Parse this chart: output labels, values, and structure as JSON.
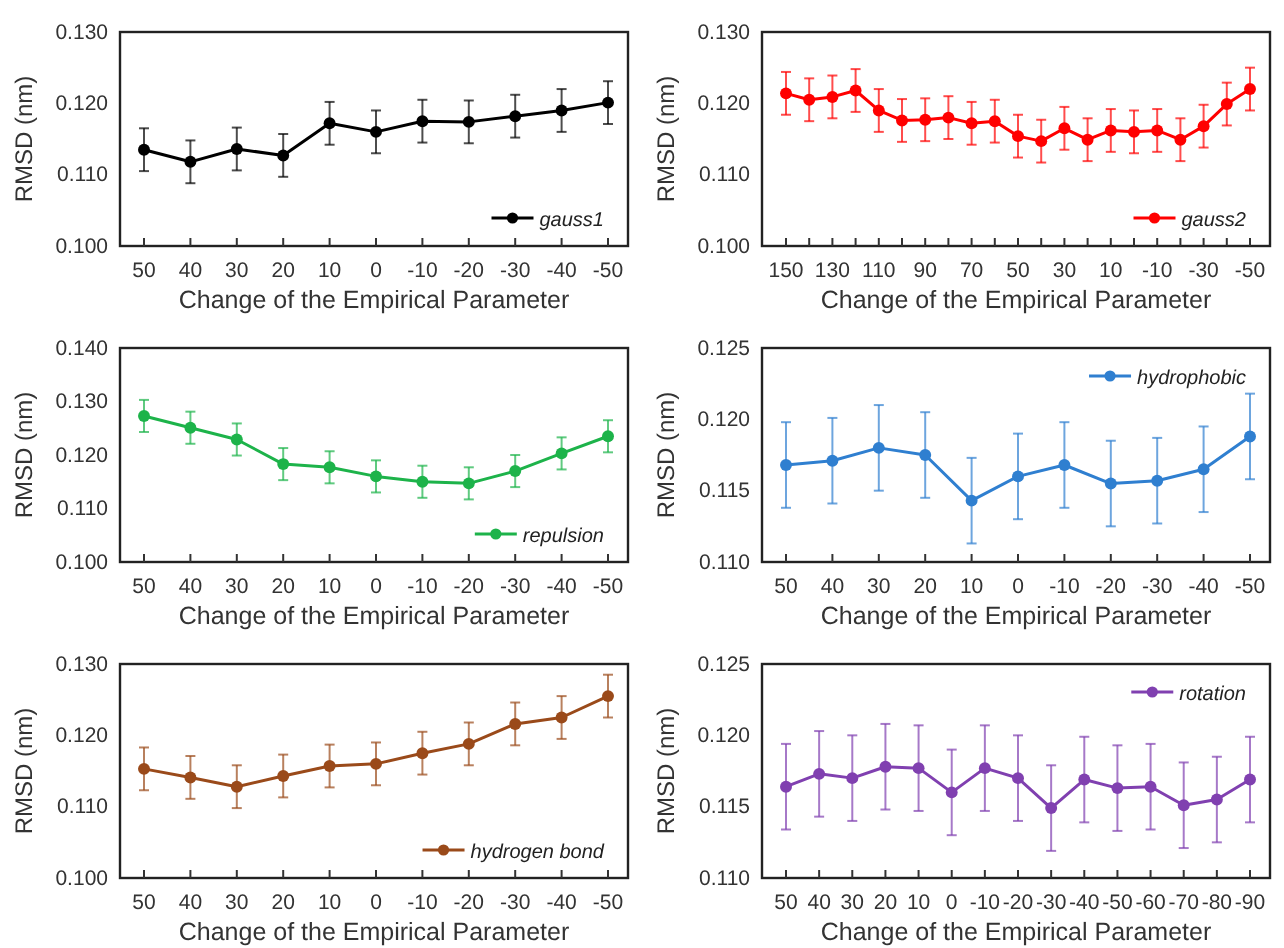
{
  "chart_data": [
    {
      "type": "line",
      "xlabel": "Change of the Empirical Parameter",
      "ylabel": "RMSD (nm)",
      "categories": [
        "50",
        "40",
        "30",
        "20",
        "10",
        "0",
        "-10",
        "-20",
        "-30",
        "-40",
        "-50"
      ],
      "ylim": [
        0.1,
        0.13
      ],
      "yticks": [
        {
          "value": 0.1,
          "label": "0.100"
        },
        {
          "value": 0.11,
          "label": "0.110"
        },
        {
          "value": 0.12,
          "label": "0.120"
        },
        {
          "value": 0.13,
          "label": "0.130"
        }
      ],
      "legend": "bottom right",
      "marker": "circle",
      "grid": false,
      "series": [
        {
          "name": "gauss1",
          "color": "#000000",
          "values": [
            0.1135,
            0.1118,
            0.1136,
            0.1127,
            0.1172,
            0.116,
            0.1175,
            0.1174,
            0.1182,
            0.119,
            0.1201
          ],
          "errors": [
            0.003,
            0.003,
            0.003,
            0.003,
            0.003,
            0.003,
            0.003,
            0.003,
            0.003,
            0.003,
            0.003
          ]
        }
      ]
    },
    {
      "type": "line",
      "xlabel": "Change of the Empirical Parameter",
      "ylabel": "RMSD (nm)",
      "categories": [
        "150",
        null,
        "130",
        null,
        "110",
        null,
        "90",
        null,
        "70",
        null,
        "50",
        null,
        "30",
        null,
        "10",
        null,
        "-10",
        null,
        "-30",
        null,
        "-50"
      ],
      "ylim": [
        0.1,
        0.13
      ],
      "yticks": [
        {
          "value": 0.1,
          "label": "0.100"
        },
        {
          "value": 0.11,
          "label": "0.110"
        },
        {
          "value": 0.12,
          "label": "0.120"
        },
        {
          "value": 0.13,
          "label": "0.130"
        }
      ],
      "legend": "bottom right",
      "marker": "circle",
      "grid": false,
      "series": [
        {
          "name": "gauss2",
          "color": "#ff0000",
          "values": [
            0.1214,
            0.1205,
            0.1209,
            0.1218,
            0.119,
            0.1176,
            0.1177,
            0.118,
            0.1172,
            0.1175,
            0.1154,
            0.1147,
            0.1165,
            0.1149,
            0.1162,
            0.116,
            0.1162,
            0.1149,
            0.1168,
            0.1199,
            0.122
          ],
          "errors": [
            0.003,
            0.003,
            0.003,
            0.003,
            0.003,
            0.003,
            0.003,
            0.003,
            0.003,
            0.003,
            0.003,
            0.003,
            0.003,
            0.003,
            0.003,
            0.003,
            0.003,
            0.003,
            0.003,
            0.003,
            0.003
          ]
        }
      ]
    },
    {
      "type": "line",
      "xlabel": "Change of the Empirical Parameter",
      "ylabel": "RMSD (nm)",
      "categories": [
        "50",
        "40",
        "30",
        "20",
        "10",
        "0",
        "-10",
        "-20",
        "-30",
        "-40",
        "-50"
      ],
      "ylim": [
        0.1,
        0.14
      ],
      "yticks": [
        {
          "value": 0.1,
          "label": "0.100"
        },
        {
          "value": 0.11,
          "label": "0.110"
        },
        {
          "value": 0.12,
          "label": "0.120"
        },
        {
          "value": 0.13,
          "label": "0.130"
        },
        {
          "value": 0.14,
          "label": "0.140"
        }
      ],
      "legend": "bottom right",
      "marker": "circle",
      "grid": false,
      "series": [
        {
          "name": "repulsion",
          "color": "#1db34a",
          "values": [
            0.1273,
            0.1251,
            0.1229,
            0.1183,
            0.1177,
            0.116,
            0.115,
            0.1147,
            0.117,
            0.1203,
            0.1235
          ],
          "errors": [
            0.003,
            0.003,
            0.003,
            0.003,
            0.003,
            0.003,
            0.003,
            0.003,
            0.003,
            0.003,
            0.003
          ]
        }
      ]
    },
    {
      "type": "line",
      "xlabel": "Change of the Empirical Parameter",
      "ylabel": "RMSD (nm)",
      "categories": [
        "50",
        "40",
        "30",
        "20",
        "10",
        "0",
        "-10",
        "-20",
        "-30",
        "-40",
        "-50"
      ],
      "ylim": [
        0.11,
        0.125
      ],
      "yticks": [
        {
          "value": 0.11,
          "label": "0.110"
        },
        {
          "value": 0.115,
          "label": "0.115"
        },
        {
          "value": 0.12,
          "label": "0.120"
        },
        {
          "value": 0.125,
          "label": "0.125"
        }
      ],
      "legend": "top right",
      "marker": "circle",
      "grid": false,
      "series": [
        {
          "name": "hydrophobic",
          "color": "#2f7fd0",
          "values": [
            0.1168,
            0.1171,
            0.118,
            0.1175,
            0.1143,
            0.116,
            0.1168,
            0.1155,
            0.1157,
            0.1165,
            0.1188
          ],
          "errors": [
            0.003,
            0.003,
            0.003,
            0.003,
            0.003,
            0.003,
            0.003,
            0.003,
            0.003,
            0.003,
            0.003
          ]
        }
      ]
    },
    {
      "type": "line",
      "xlabel": "Change of the Empirical Parameter",
      "ylabel": "RMSD (nm)",
      "categories": [
        "50",
        "40",
        "30",
        "20",
        "10",
        "0",
        "-10",
        "-20",
        "-30",
        "-40",
        "-50"
      ],
      "ylim": [
        0.1,
        0.13
      ],
      "yticks": [
        {
          "value": 0.1,
          "label": "0.100"
        },
        {
          "value": 0.11,
          "label": "0.110"
        },
        {
          "value": 0.12,
          "label": "0.120"
        },
        {
          "value": 0.13,
          "label": "0.130"
        }
      ],
      "legend": "bottom right",
      "marker": "circle",
      "grid": false,
      "series": [
        {
          "name": "hydrogen bond",
          "color": "#9a4a1a",
          "values": [
            0.1153,
            0.1141,
            0.1128,
            0.1143,
            0.1157,
            0.116,
            0.1175,
            0.1188,
            0.1216,
            0.1225,
            0.1255
          ],
          "errors": [
            0.003,
            0.003,
            0.003,
            0.003,
            0.003,
            0.003,
            0.003,
            0.003,
            0.003,
            0.003,
            0.003
          ]
        }
      ]
    },
    {
      "type": "line",
      "xlabel": "Change of the Empirical Parameter",
      "ylabel": "RMSD (nm)",
      "categories": [
        "50",
        "40",
        "30",
        "20",
        "10",
        "0",
        "-10",
        "-20",
        "-30",
        "-40",
        "-50",
        "-60",
        "-70",
        "-80",
        "-90"
      ],
      "ylim": [
        0.11,
        0.125
      ],
      "yticks": [
        {
          "value": 0.11,
          "label": "0.110"
        },
        {
          "value": 0.115,
          "label": "0.115"
        },
        {
          "value": 0.12,
          "label": "0.120"
        },
        {
          "value": 0.125,
          "label": "0.125"
        }
      ],
      "legend": "top right",
      "marker": "circle",
      "grid": false,
      "series": [
        {
          "name": "rotation",
          "color": "#8040b0",
          "values": [
            0.1164,
            0.1173,
            0.117,
            0.1178,
            0.1177,
            0.116,
            0.1177,
            0.117,
            0.1149,
            0.1169,
            0.1163,
            0.1164,
            0.1151,
            0.1155,
            0.1169
          ],
          "errors": [
            0.003,
            0.003,
            0.003,
            0.003,
            0.003,
            0.003,
            0.003,
            0.003,
            0.003,
            0.003,
            0.003,
            0.003,
            0.003,
            0.003,
            0.003
          ]
        }
      ]
    }
  ]
}
